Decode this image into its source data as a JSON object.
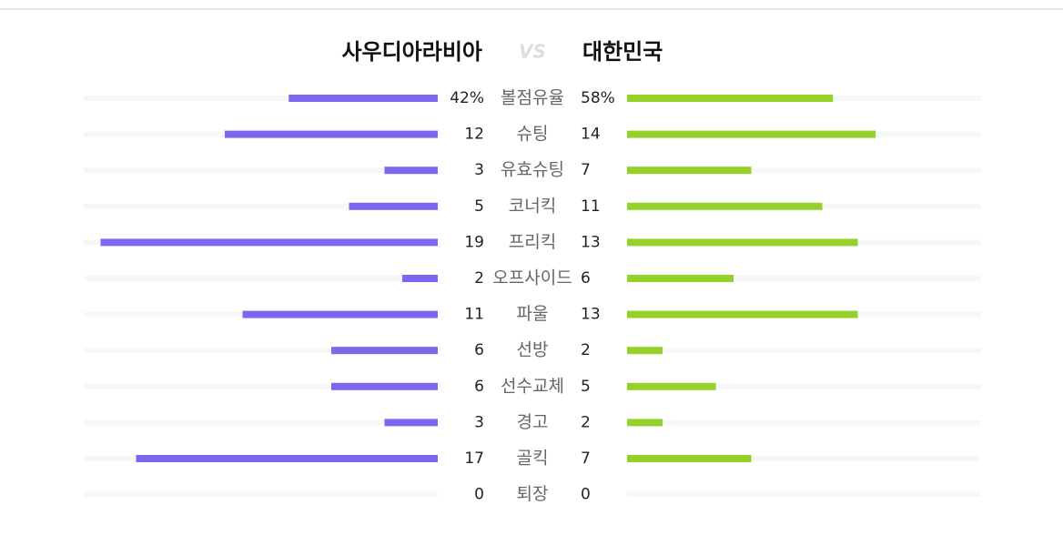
{
  "header": {
    "home": "사우디아라비아",
    "vs": "VS",
    "away": "대한민국"
  },
  "colors": {
    "home": "#7b68ee",
    "away": "#94d12a"
  },
  "stats": [
    {
      "label": "볼점유율",
      "home": 42,
      "away": 58,
      "home_label": "42%",
      "away_label": "58%"
    },
    {
      "label": "슈팅",
      "home": 12,
      "away": 14
    },
    {
      "label": "유효슈팅",
      "home": 3,
      "away": 7
    },
    {
      "label": "코너킥",
      "home": 5,
      "away": 11
    },
    {
      "label": "프리킥",
      "home": 19,
      "away": 13
    },
    {
      "label": "오프사이드",
      "home": 2,
      "away": 6
    },
    {
      "label": "파울",
      "home": 11,
      "away": 13
    },
    {
      "label": "선방",
      "home": 6,
      "away": 2
    },
    {
      "label": "선수교체",
      "home": 6,
      "away": 5
    },
    {
      "label": "경고",
      "home": 3,
      "away": 2
    },
    {
      "label": "골킥",
      "home": 17,
      "away": 7
    },
    {
      "label": "퇴장",
      "home": 0,
      "away": 0
    }
  ]
}
